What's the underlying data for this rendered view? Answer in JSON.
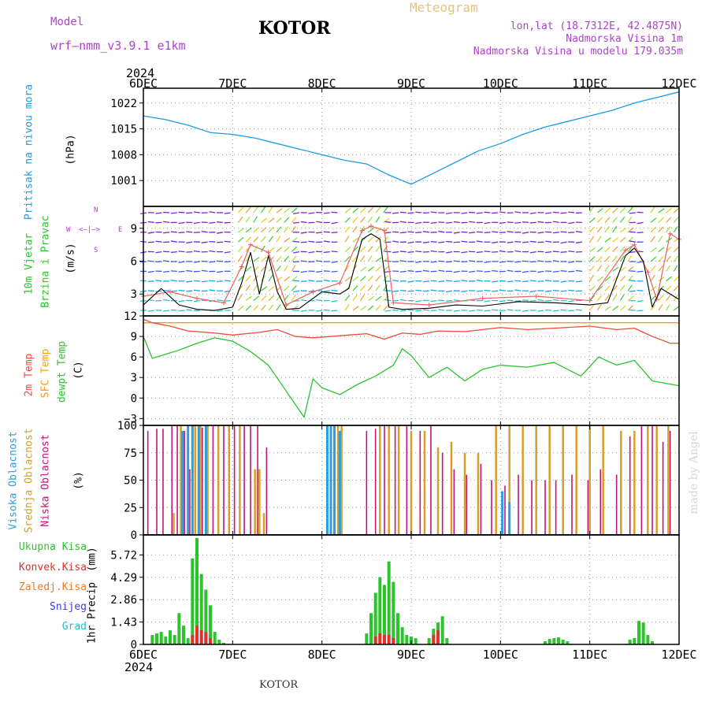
{
  "header": {
    "model_label": "Model",
    "model_name": "wrf–nmm_v3.9.1  e1km",
    "title": "KOTOR",
    "product": "Meteogram",
    "lonlat": "lon,lat (18.7312E, 42.4875N)",
    "altitude": "Nadmorska Visina 1m",
    "model_altitude": "Nadmorska Visina u modelu 179.035m",
    "footer_title": "KOTOR",
    "watermark": "made by Angel"
  },
  "time_axis": {
    "year_top": "2024",
    "year_bottom": "2024",
    "ticks": [
      "6DEC",
      "7DEC",
      "8DEC",
      "9DEC",
      "10DEC",
      "11DEC",
      "12DEC"
    ]
  },
  "panel_labels": {
    "pressure": [
      "Pritisak na nivou mora",
      "(hPa)"
    ],
    "wind": [
      "10m Vjetar",
      "Brzina i Pravac",
      "(m/s)"
    ],
    "wind_rose": [
      "W",
      "<–|–>",
      "E",
      "N",
      "S"
    ],
    "temp": [
      "2m Temp",
      "SFC Temp",
      "dewpt Temp",
      "(C)"
    ],
    "cloud": [
      "Visoka Oblacnost",
      "Srednja Oblacnost",
      "Niska Oblacnost",
      "(%)"
    ],
    "precip_units": [
      "1hr Precip",
      "(mm)"
    ],
    "precip_legend": [
      "Ukupna Kisa",
      "Konvek.Kisa",
      "Zaledj.Kisa",
      "Snijeg",
      "Grad"
    ]
  },
  "colors": {
    "pressure": "#1e9be8",
    "t2m": "#f04a3a",
    "tsfc": "#f0a020",
    "dewpt": "#2cc42c",
    "cloud_high": "#2a9ee0",
    "cloud_mid": "#d4a02a",
    "cloud_low": "#c0187a",
    "rain_total": "#2cc42c",
    "rain_conv": "#e03030",
    "rain_frz": "#f07a20",
    "snow": "#3a3ae0",
    "grad": "#20c0c0",
    "wind_speed": "#000000",
    "wind_gust": "#f06060"
  },
  "chart_data": [
    {
      "type": "line",
      "name": "pressure",
      "ylabel": "Pritisak na nivou mora (hPa)",
      "ylim": [
        994,
        1026
      ],
      "yticks": [
        1001,
        1008,
        1015,
        1022
      ],
      "grid": true,
      "series": [
        {
          "name": "Pritisak na nivou mora",
          "x": [
            0,
            0.25,
            0.5,
            0.75,
            1.0,
            1.25,
            1.5,
            1.75,
            2.0,
            2.25,
            2.5,
            2.75,
            3.0,
            3.25,
            3.5,
            3.75,
            4.0,
            4.25,
            4.5,
            4.75,
            5.0,
            5.25,
            5.5,
            5.75,
            6.0
          ],
          "y": [
            1018.5,
            1017.5,
            1016.0,
            1014.0,
            1013.5,
            1012.5,
            1011.0,
            1009.5,
            1008.0,
            1006.5,
            1005.5,
            1002.5,
            1000.0,
            1003.0,
            1006.0,
            1009.0,
            1011.0,
            1013.5,
            1015.5,
            1017.0,
            1018.5,
            1020.0,
            1022.0,
            1023.5,
            1025.0
          ]
        }
      ]
    },
    {
      "type": "line",
      "name": "wind",
      "ylabel": "10m Vjetar Brzina i Pravac (m/s)",
      "ylim": [
        1,
        11
      ],
      "yticks": [
        3,
        6,
        9
      ],
      "grid": true,
      "series": [
        {
          "name": "speed",
          "x": [
            0,
            0.2,
            0.4,
            0.6,
            0.8,
            1.0,
            1.1,
            1.2,
            1.3,
            1.4,
            1.5,
            1.6,
            1.75,
            1.9,
            2.0,
            2.2,
            2.3,
            2.45,
            2.55,
            2.65,
            2.75,
            2.9,
            3.2,
            3.5,
            3.8,
            4.2,
            4.6,
            5.0,
            5.2,
            5.4,
            5.5,
            5.6,
            5.7,
            5.8,
            6.0
          ],
          "y": [
            2.0,
            3.5,
            2.0,
            1.6,
            1.5,
            1.8,
            4.0,
            6.8,
            3.0,
            6.5,
            3.2,
            1.6,
            1.7,
            2.6,
            3.2,
            3.0,
            3.5,
            8.0,
            8.5,
            8.0,
            1.8,
            1.6,
            1.7,
            2.0,
            1.9,
            2.3,
            2.2,
            2.0,
            2.2,
            6.5,
            7.2,
            6.0,
            1.8,
            3.5,
            2.5
          ]
        },
        {
          "name": "gust",
          "x": [
            0,
            0.3,
            0.6,
            0.9,
            1.1,
            1.2,
            1.4,
            1.6,
            1.9,
            2.2,
            2.45,
            2.55,
            2.7,
            2.8,
            3.2,
            3.8,
            4.4,
            5.0,
            5.4,
            5.5,
            5.65,
            5.75,
            5.9,
            6.0
          ],
          "y": [
            2.8,
            3.2,
            2.6,
            2.2,
            5.5,
            7.5,
            6.8,
            2.0,
            3.2,
            4.0,
            8.8,
            9.2,
            8.8,
            2.2,
            2.0,
            2.6,
            2.8,
            2.4,
            7.0,
            7.5,
            5.0,
            2.5,
            8.5,
            8.0
          ]
        }
      ]
    },
    {
      "type": "line",
      "name": "temperature",
      "ylabel": "Temp (C)",
      "ylim": [
        -4,
        12
      ],
      "yticks": [
        -3,
        0,
        3,
        6,
        9,
        12
      ],
      "grid": true,
      "series": [
        {
          "name": "2m Temp",
          "x": [
            0,
            0.1,
            0.3,
            0.5,
            0.8,
            1.0,
            1.3,
            1.5,
            1.7,
            1.9,
            2.1,
            2.3,
            2.5,
            2.7,
            2.9,
            3.1,
            3.3,
            3.6,
            4.0,
            4.3,
            4.6,
            5.0,
            5.3,
            5.5,
            5.7,
            5.9,
            6.0
          ],
          "y": [
            11.5,
            11.0,
            10.5,
            9.8,
            9.5,
            9.2,
            9.6,
            10.0,
            9.0,
            8.8,
            9.0,
            9.2,
            9.4,
            8.6,
            9.5,
            9.3,
            9.8,
            9.7,
            10.3,
            10.0,
            10.2,
            10.5,
            10.0,
            10.2,
            9.0,
            8.0,
            8.0
          ]
        },
        {
          "name": "SFC Temp",
          "x": [
            0,
            6
          ],
          "y": [
            11.0,
            11.0
          ]
        },
        {
          "name": "dewpt Temp",
          "x": [
            0,
            0.1,
            0.2,
            0.4,
            0.6,
            0.8,
            1.0,
            1.2,
            1.4,
            1.6,
            1.8,
            1.9,
            2.0,
            2.2,
            2.4,
            2.6,
            2.8,
            2.9,
            3.0,
            3.2,
            3.4,
            3.6,
            3.8,
            4.0,
            4.3,
            4.6,
            4.9,
            5.1,
            5.3,
            5.5,
            5.7,
            6.0
          ],
          "y": [
            9.0,
            5.8,
            6.2,
            7.0,
            8.0,
            8.8,
            8.3,
            6.8,
            4.8,
            1.0,
            -2.8,
            2.8,
            1.5,
            0.5,
            2.0,
            3.2,
            4.8,
            7.2,
            6.2,
            3.0,
            4.5,
            2.5,
            4.2,
            4.8,
            4.5,
            5.2,
            3.2,
            6.0,
            4.8,
            5.5,
            2.5,
            1.8
          ]
        }
      ]
    },
    {
      "type": "bar",
      "name": "cloud",
      "ylabel": "Oblacnost (%)",
      "ylim": [
        0,
        100
      ],
      "yticks": [
        0,
        25,
        50,
        75,
        100
      ],
      "grid": true,
      "note_x": "bars at hourly time steps (days after 6DEC)",
      "series": [
        {
          "name": "Niska Oblacnost",
          "x": [
            0.05,
            0.15,
            0.22,
            0.32,
            0.38,
            0.46,
            0.52,
            0.66,
            0.78,
            0.9,
            1.02,
            1.13,
            1.2,
            1.28,
            1.38,
            2.5,
            2.6,
            2.7,
            2.82,
            2.95,
            3.1,
            3.22,
            3.35,
            3.48,
            3.62,
            3.78,
            3.9,
            4.05,
            4.2,
            4.35,
            4.5,
            4.62,
            4.8,
            4.98,
            5.12,
            5.3,
            5.45,
            5.58,
            5.7,
            5.82,
            5.9
          ],
          "y": [
            95,
            97,
            97,
            100,
            100,
            95,
            60,
            98,
            100,
            100,
            100,
            100,
            100,
            100,
            80,
            95,
            97,
            100,
            100,
            100,
            95,
            100,
            75,
            60,
            55,
            65,
            50,
            45,
            55,
            50,
            50,
            50,
            55,
            50,
            60,
            55,
            90,
            100,
            100,
            85,
            95
          ]
        },
        {
          "name": "Srednja Oblacnost",
          "x": [
            0.34,
            0.42,
            0.58,
            0.64,
            0.72,
            0.84,
            0.96,
            1.08,
            1.25,
            1.3,
            1.35,
            2.1,
            2.18,
            2.22,
            2.65,
            2.75,
            2.86,
            3.0,
            3.15,
            3.3,
            3.45,
            3.6,
            3.75,
            3.95,
            4.1,
            4.25,
            4.4,
            4.55,
            4.7,
            4.85,
            5.0,
            5.15,
            5.35,
            5.5,
            5.65,
            5.75,
            5.88
          ],
          "y": [
            20,
            100,
            100,
            100,
            100,
            100,
            100,
            100,
            60,
            60,
            20,
            100,
            100,
            100,
            100,
            100,
            100,
            95,
            95,
            80,
            85,
            75,
            75,
            100,
            100,
            100,
            100,
            100,
            100,
            100,
            100,
            100,
            95,
            95,
            100,
            100,
            100
          ]
        },
        {
          "name": "Visoka Oblacnost",
          "x": [
            0.44,
            0.5,
            0.55,
            0.62,
            0.7,
            2.06,
            2.1,
            2.14,
            2.2,
            4.02,
            4.1
          ],
          "y": [
            95,
            100,
            100,
            100,
            100,
            100,
            100,
            100,
            95,
            40,
            30
          ]
        }
      ]
    },
    {
      "type": "bar",
      "name": "precipitation",
      "ylabel": "1hr Precip (mm)",
      "ylim": [
        0,
        7.0
      ],
      "yticks": [
        0,
        1.43,
        2.86,
        4.29,
        5.72
      ],
      "grid": true,
      "series": [
        {
          "name": "Ukupna Kisa",
          "x": [
            0.1,
            0.15,
            0.2,
            0.25,
            0.3,
            0.35,
            0.4,
            0.45,
            0.5,
            0.55,
            0.6,
            0.65,
            0.7,
            0.75,
            0.8,
            0.85,
            0.9,
            2.5,
            2.55,
            2.6,
            2.65,
            2.7,
            2.75,
            2.8,
            2.85,
            2.9,
            2.95,
            3.0,
            3.05,
            3.2,
            3.25,
            3.3,
            3.35,
            3.4,
            4.5,
            4.55,
            4.6,
            4.65,
            4.7,
            4.75,
            5.45,
            5.5,
            5.55,
            5.6,
            5.65,
            5.7
          ],
          "y": [
            0.6,
            0.7,
            0.8,
            0.5,
            0.9,
            0.6,
            2.0,
            1.2,
            0.4,
            5.5,
            6.8,
            4.5,
            3.5,
            2.5,
            0.8,
            0.3,
            0.1,
            0.7,
            2.0,
            3.3,
            4.3,
            3.8,
            5.3,
            4.0,
            2.0,
            1.1,
            0.6,
            0.5,
            0.4,
            0.4,
            1.0,
            1.4,
            1.8,
            0.4,
            0.2,
            0.35,
            0.4,
            0.45,
            0.3,
            0.2,
            0.3,
            0.4,
            1.5,
            1.4,
            0.6,
            0.2
          ]
        },
        {
          "name": "Konvek.Kisa",
          "x": [
            0.55,
            0.6,
            0.65,
            0.7,
            0.75,
            2.6,
            2.65,
            2.7,
            2.75,
            2.8,
            3.25,
            3.3
          ],
          "y": [
            0.6,
            1.2,
            0.9,
            0.8,
            0.4,
            0.5,
            0.7,
            0.6,
            0.6,
            0.4,
            0.6,
            0.9
          ]
        }
      ]
    }
  ]
}
